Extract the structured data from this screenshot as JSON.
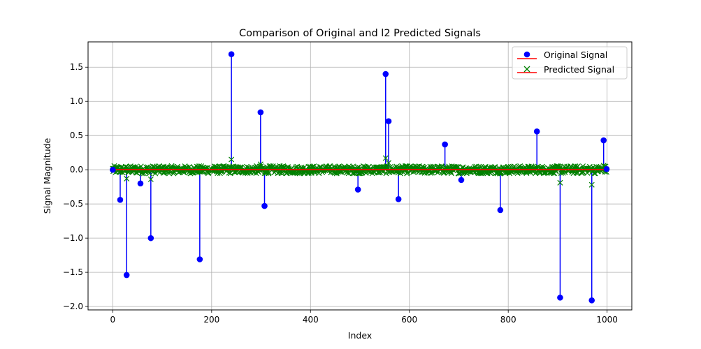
{
  "chart_data": {
    "type": "stem",
    "title": "Comparison of Original and l2 Predicted Signals",
    "xlabel": "Index",
    "ylabel": "Signal Magnitude",
    "xlim": [
      -50,
      1050
    ],
    "ylim": [
      -2.05,
      1.87
    ],
    "xticks": [
      0,
      200,
      400,
      600,
      800,
      1000
    ],
    "yticks": [
      -2.0,
      -1.5,
      -1.0,
      -0.5,
      0.0,
      0.5,
      1.0,
      1.5
    ],
    "xtick_labels": [
      "0",
      "200",
      "400",
      "600",
      "800",
      "1000"
    ],
    "ytick_labels": [
      "−2.0",
      "−1.5",
      "−1.0",
      "−0.5",
      "0.0",
      "0.5",
      "1.0",
      "1.5"
    ],
    "grid": true,
    "legend_position": "top-right",
    "series": [
      {
        "name": "Original Signal",
        "marker": "circle",
        "color": "#0000ff",
        "baseline_color": "#ff0000",
        "points": [
          [
            0,
            0.0
          ],
          [
            15,
            -0.44
          ],
          [
            28,
            -1.54
          ],
          [
            56,
            -0.2
          ],
          [
            77,
            -1.0
          ],
          [
            176,
            -1.31
          ],
          [
            240,
            1.69
          ],
          [
            299,
            0.84
          ],
          [
            307,
            -0.53
          ],
          [
            496,
            -0.29
          ],
          [
            552,
            1.4
          ],
          [
            558,
            0.71
          ],
          [
            578,
            -0.43
          ],
          [
            672,
            0.37
          ],
          [
            705,
            -0.15
          ],
          [
            784,
            -0.59
          ],
          [
            858,
            0.56
          ],
          [
            905,
            -1.87
          ],
          [
            969,
            -1.91
          ],
          [
            993,
            0.43
          ],
          [
            999,
            0.01
          ]
        ]
      },
      {
        "name": "Predicted Signal",
        "marker": "x",
        "color": "#008000",
        "baseline_color": "#ff0000",
        "noise_amplitude": 0.055,
        "count": 1000,
        "notable_points": [
          [
            28,
            -0.13
          ],
          [
            77,
            -0.14
          ],
          [
            240,
            0.15
          ],
          [
            299,
            0.08
          ],
          [
            307,
            -0.05
          ],
          [
            552,
            0.17
          ],
          [
            558,
            0.1
          ],
          [
            905,
            -0.19
          ],
          [
            969,
            -0.22
          ],
          [
            993,
            0.06
          ]
        ]
      }
    ]
  }
}
